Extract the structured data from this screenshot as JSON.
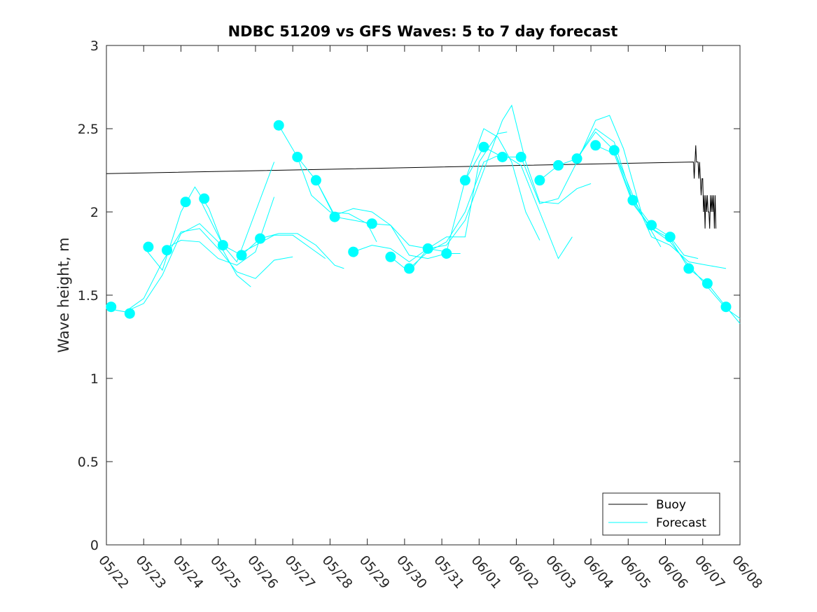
{
  "chart_data": {
    "type": "line",
    "title": "NDBC 51209 vs GFS Waves: 5 to 7 day forecast",
    "xlabel": "",
    "ylabel": "Wave height, m",
    "ylim": [
      0,
      3
    ],
    "yticks": [
      0,
      0.5,
      1,
      1.5,
      2,
      2.5,
      3
    ],
    "ytick_labels": [
      "0",
      "0.5",
      "1",
      "1.5",
      "2",
      "2.5",
      "3"
    ],
    "xlim": [
      "05/22",
      "06/08"
    ],
    "xtick_labels": [
      "05/22",
      "05/23",
      "05/24",
      "05/25",
      "05/26",
      "05/27",
      "05/28",
      "05/29",
      "05/30",
      "05/31",
      "06/01",
      "06/02",
      "06/03",
      "06/04",
      "06/05",
      "06/06",
      "06/07",
      "06/08"
    ],
    "grid": false,
    "legend": {
      "location": "bottom-right",
      "entries": [
        "Buoy",
        "Forecast"
      ]
    },
    "colors": {
      "buoy": "#000000",
      "forecast": "#00ffff"
    },
    "series": [
      {
        "name": "Buoy",
        "style": "line",
        "color": "#000000",
        "points": [
          [
            "05/22 00:00",
            2.23
          ],
          [
            "06/06 18:00",
            2.3
          ],
          [
            "06/06 18:30",
            2.2
          ],
          [
            "06/06 19:00",
            2.3
          ],
          [
            "06/06 19:30",
            2.4
          ],
          [
            "06/06 20:00",
            2.3
          ],
          [
            "06/06 21:00",
            2.3
          ],
          [
            "06/06 21:30",
            2.2
          ],
          [
            "06/06 22:00",
            2.3
          ],
          [
            "06/06 22:30",
            2.2
          ],
          [
            "06/06 23:00",
            2.1
          ],
          [
            "06/06 23:30",
            2.2
          ],
          [
            "06/07 00:00",
            2.2
          ],
          [
            "06/07 00:30",
            2.0
          ],
          [
            "06/07 01:00",
            2.1
          ],
          [
            "06/07 01:30",
            1.9
          ],
          [
            "06/07 02:00",
            2.1
          ],
          [
            "06/07 02:30",
            2.0
          ],
          [
            "06/07 03:00",
            2.1
          ],
          [
            "06/07 03:30",
            2.0
          ],
          [
            "06/07 04:00",
            2.0
          ],
          [
            "06/07 04:30",
            1.9
          ],
          [
            "06/07 05:00",
            2.1
          ],
          [
            "06/07 05:30",
            2.0
          ],
          [
            "06/07 06:00",
            2.1
          ],
          [
            "06/07 06:30",
            2.0
          ],
          [
            "06/07 07:00",
            2.1
          ],
          [
            "06/07 07:30",
            1.9
          ],
          [
            "06/07 08:00",
            2.1
          ],
          [
            "06/07 08:30",
            1.9
          ]
        ]
      },
      {
        "name": "Forecast",
        "style": "markers",
        "color": "#00ffff",
        "points": [
          [
            "05/22 03:00",
            1.43
          ],
          [
            "05/22 15:00",
            1.39
          ],
          [
            "05/23 03:00",
            1.79
          ],
          [
            "05/23 15:00",
            1.77
          ],
          [
            "05/24 03:00",
            2.06
          ],
          [
            "05/24 15:00",
            2.08
          ],
          [
            "05/25 03:00",
            1.8
          ],
          [
            "05/25 15:00",
            1.74
          ],
          [
            "05/26 03:00",
            1.84
          ],
          [
            "05/26 15:00",
            2.52
          ],
          [
            "05/27 03:00",
            2.33
          ],
          [
            "05/27 15:00",
            2.19
          ],
          [
            "05/28 03:00",
            1.97
          ],
          [
            "05/28 15:00",
            1.76
          ],
          [
            "05/29 03:00",
            1.93
          ],
          [
            "05/29 15:00",
            1.73
          ],
          [
            "05/30 03:00",
            1.66
          ],
          [
            "05/30 15:00",
            1.78
          ],
          [
            "05/31 03:00",
            1.75
          ],
          [
            "05/31 15:00",
            2.19
          ],
          [
            "06/01 03:00",
            2.39
          ],
          [
            "06/01 15:00",
            2.33
          ],
          [
            "06/02 03:00",
            2.33
          ],
          [
            "06/02 15:00",
            2.19
          ],
          [
            "06/03 03:00",
            2.28
          ],
          [
            "06/03 15:00",
            2.32
          ],
          [
            "06/04 03:00",
            2.4
          ],
          [
            "06/04 15:00",
            2.37
          ],
          [
            "06/05 03:00",
            2.07
          ],
          [
            "06/05 15:00",
            1.92
          ],
          [
            "06/06 03:00",
            1.85
          ],
          [
            "06/06 15:00",
            1.66
          ],
          [
            "06/07 03:00",
            1.57
          ],
          [
            "06/07 15:00",
            1.43
          ]
        ]
      },
      {
        "name": "Forecast",
        "style": "line",
        "color": "#00ffff",
        "points": [
          [
            "05/22 00:00",
            1.42
          ],
          [
            "05/22 12:00",
            1.4
          ],
          [
            "05/23 00:00",
            1.45
          ],
          [
            "05/23 12:00",
            1.62
          ],
          [
            "05/24 00:00",
            1.87
          ],
          [
            "05/24 12:00",
            1.93
          ],
          [
            "05/25 00:00",
            1.82
          ],
          [
            "05/25 12:00",
            1.62
          ],
          [
            "05/25 21:00",
            1.55
          ]
        ]
      },
      {
        "name": "Forecast",
        "style": "line",
        "color": "#00ffff",
        "points": [
          [
            "05/22 12:00",
            1.4
          ],
          [
            "05/23 00:00",
            1.48
          ],
          [
            "05/23 12:00",
            1.7
          ],
          [
            "05/24 00:00",
            1.88
          ],
          [
            "05/24 12:00",
            1.9
          ],
          [
            "05/25 00:00",
            1.78
          ],
          [
            "05/25 12:00",
            1.64
          ],
          [
            "05/26 00:00",
            1.6
          ],
          [
            "05/26 12:00",
            1.71
          ],
          [
            "05/27 00:00",
            1.73
          ]
        ]
      },
      {
        "name": "Forecast",
        "style": "line",
        "color": "#00ffff",
        "points": [
          [
            "05/23 00:00",
            1.79
          ],
          [
            "05/23 12:00",
            1.65
          ],
          [
            "05/24 00:00",
            2.0
          ],
          [
            "05/24 09:00",
            2.15
          ],
          [
            "05/24 18:00",
            2.02
          ],
          [
            "05/25 03:00",
            1.8
          ],
          [
            "05/25 12:00",
            1.7
          ],
          [
            "05/26 00:00",
            2.0
          ],
          [
            "05/26 12:00",
            2.3
          ]
        ]
      },
      {
        "name": "Forecast",
        "style": "line",
        "color": "#00ffff",
        "points": [
          [
            "05/23 12:00",
            1.77
          ],
          [
            "05/24 00:00",
            1.83
          ],
          [
            "05/24 12:00",
            1.82
          ],
          [
            "05/25 00:00",
            1.72
          ],
          [
            "05/25 12:00",
            1.68
          ],
          [
            "05/26 00:00",
            1.76
          ],
          [
            "05/26 12:00",
            2.09
          ]
        ]
      },
      {
        "name": "Forecast",
        "style": "line",
        "color": "#00ffff",
        "points": [
          [
            "05/24 12:00",
            2.08
          ],
          [
            "05/25 03:00",
            1.8
          ],
          [
            "05/25 15:00",
            1.74
          ],
          [
            "05/26 03:00",
            1.84
          ],
          [
            "05/26 15:00",
            1.87
          ],
          [
            "05/27 03:00",
            1.87
          ],
          [
            "05/27 15:00",
            1.8
          ],
          [
            "05/28 03:00",
            1.68
          ],
          [
            "05/28 09:00",
            1.66
          ]
        ]
      },
      {
        "name": "Forecast",
        "style": "line",
        "color": "#00ffff",
        "points": [
          [
            "05/25 12:00",
            1.74
          ],
          [
            "05/26 00:00",
            1.8
          ],
          [
            "05/26 12:00",
            1.86
          ],
          [
            "05/27 00:00",
            1.86
          ],
          [
            "05/27 12:00",
            1.78
          ],
          [
            "05/27 21:00",
            1.72
          ]
        ]
      },
      {
        "name": "Forecast",
        "style": "line",
        "color": "#00ffff",
        "points": [
          [
            "05/26 15:00",
            2.52
          ],
          [
            "05/27 03:00",
            2.33
          ],
          [
            "05/27 15:00",
            2.19
          ],
          [
            "05/28 03:00",
            1.98
          ],
          [
            "05/28 15:00",
            2.02
          ],
          [
            "05/29 03:00",
            2.0
          ],
          [
            "05/29 15:00",
            1.92
          ],
          [
            "05/30 03:00",
            1.8
          ],
          [
            "05/30 15:00",
            1.78
          ]
        ]
      },
      {
        "name": "Forecast",
        "style": "line",
        "color": "#00ffff",
        "points": [
          [
            "05/27 03:00",
            2.33
          ],
          [
            "05/27 12:00",
            2.1
          ],
          [
            "05/28 00:00",
            2.0
          ],
          [
            "05/28 12:00",
            1.99
          ],
          [
            "05/29 00:00",
            1.93
          ],
          [
            "05/29 06:00",
            1.82
          ]
        ]
      },
      {
        "name": "Forecast",
        "style": "line",
        "color": "#00ffff",
        "points": [
          [
            "05/27 15:00",
            2.19
          ],
          [
            "05/28 03:00",
            1.97
          ],
          [
            "05/28 15:00",
            1.95
          ],
          [
            "05/29 03:00",
            1.93
          ],
          [
            "05/29 15:00",
            1.92
          ],
          [
            "05/30 03:00",
            1.74
          ],
          [
            "05/30 15:00",
            1.72
          ],
          [
            "05/31 03:00",
            1.75
          ],
          [
            "05/31 12:00",
            1.75
          ]
        ]
      },
      {
        "name": "Forecast",
        "style": "line",
        "color": "#00ffff",
        "points": [
          [
            "05/28 15:00",
            1.76
          ],
          [
            "05/29 03:00",
            1.8
          ],
          [
            "05/29 15:00",
            1.78
          ],
          [
            "05/30 03:00",
            1.7
          ],
          [
            "05/30 15:00",
            1.78
          ],
          [
            "05/31 03:00",
            1.85
          ],
          [
            "05/31 15:00",
            1.85
          ],
          [
            "06/01 00:00",
            2.3
          ],
          [
            "06/01 12:00",
            2.47
          ],
          [
            "06/01 18:00",
            2.48
          ]
        ]
      },
      {
        "name": "Forecast",
        "style": "line",
        "color": "#00ffff",
        "points": [
          [
            "05/29 15:00",
            1.73
          ],
          [
            "05/30 03:00",
            1.64
          ],
          [
            "05/30 15:00",
            1.78
          ],
          [
            "05/31 03:00",
            1.76
          ],
          [
            "05/31 15:00",
            2.19
          ],
          [
            "06/01 03:00",
            2.5
          ],
          [
            "06/01 12:00",
            2.45
          ],
          [
            "06/01 21:00",
            2.3
          ],
          [
            "06/02 06:00",
            2.0
          ],
          [
            "06/02 15:00",
            1.83
          ]
        ]
      },
      {
        "name": "Forecast",
        "style": "line",
        "color": "#00ffff",
        "points": [
          [
            "05/30 03:00",
            1.66
          ],
          [
            "05/30 15:00",
            1.76
          ],
          [
            "05/31 03:00",
            1.82
          ],
          [
            "05/31 15:00",
            2.0
          ],
          [
            "06/01 03:00",
            2.3
          ],
          [
            "06/01 15:00",
            2.35
          ],
          [
            "06/02 03:00",
            2.28
          ],
          [
            "06/02 15:00",
            2.0
          ],
          [
            "06/03 03:00",
            1.72
          ],
          [
            "06/03 12:00",
            1.85
          ]
        ]
      },
      {
        "name": "Forecast",
        "style": "line",
        "color": "#00ffff",
        "points": [
          [
            "05/30 15:00",
            1.78
          ],
          [
            "05/31 03:00",
            1.8
          ],
          [
            "05/31 15:00",
            1.95
          ],
          [
            "06/01 03:00",
            2.25
          ],
          [
            "06/01 15:00",
            2.55
          ],
          [
            "06/01 21:00",
            2.64
          ],
          [
            "06/02 06:00",
            2.3
          ],
          [
            "06/02 15:00",
            2.06
          ],
          [
            "06/03 03:00",
            2.05
          ],
          [
            "06/03 15:00",
            2.14
          ],
          [
            "06/04 00:00",
            2.17
          ]
        ]
      },
      {
        "name": "Forecast",
        "style": "line",
        "color": "#00ffff",
        "points": [
          [
            "05/31 15:00",
            2.19
          ],
          [
            "06/01 03:00",
            2.39
          ],
          [
            "06/01 15:00",
            2.33
          ],
          [
            "06/02 03:00",
            2.33
          ],
          [
            "06/02 15:00",
            2.05
          ],
          [
            "06/03 03:00",
            2.08
          ],
          [
            "06/03 15:00",
            2.3
          ],
          [
            "06/04 03:00",
            2.55
          ],
          [
            "06/04 12:00",
            2.58
          ],
          [
            "06/04 21:00",
            2.38
          ],
          [
            "06/05 09:00",
            1.98
          ],
          [
            "06/05 21:00",
            1.79
          ]
        ]
      },
      {
        "name": "Forecast",
        "style": "line",
        "color": "#00ffff",
        "points": [
          [
            "06/02 15:00",
            2.19
          ],
          [
            "06/03 03:00",
            2.28
          ],
          [
            "06/03 15:00",
            2.32
          ],
          [
            "06/04 03:00",
            2.5
          ],
          [
            "06/04 15:00",
            2.42
          ],
          [
            "06/05 03:00",
            2.07
          ],
          [
            "06/05 15:00",
            1.92
          ],
          [
            "06/06 03:00",
            1.85
          ],
          [
            "06/06 12:00",
            1.74
          ],
          [
            "06/06 21:00",
            1.72
          ]
        ]
      },
      {
        "name": "Forecast",
        "style": "line",
        "color": "#00ffff",
        "points": [
          [
            "06/03 15:00",
            2.32
          ],
          [
            "06/04 03:00",
            2.48
          ],
          [
            "06/04 15:00",
            2.37
          ],
          [
            "06/05 03:00",
            2.1
          ],
          [
            "06/05 15:00",
            1.85
          ],
          [
            "06/06 03:00",
            1.8
          ],
          [
            "06/06 15:00",
            1.7
          ],
          [
            "06/07 03:00",
            1.68
          ],
          [
            "06/07 15:00",
            1.66
          ]
        ]
      },
      {
        "name": "Forecast",
        "style": "line",
        "color": "#00ffff",
        "points": [
          [
            "06/04 03:00",
            2.4
          ],
          [
            "06/04 15:00",
            2.35
          ],
          [
            "06/05 03:00",
            2.05
          ],
          [
            "06/05 15:00",
            1.9
          ],
          [
            "06/06 03:00",
            1.84
          ],
          [
            "06/06 15:00",
            1.66
          ],
          [
            "06/07 03:00",
            1.57
          ],
          [
            "06/07 15:00",
            1.43
          ],
          [
            "06/08 00:00",
            1.33
          ]
        ]
      },
      {
        "name": "Forecast",
        "style": "line",
        "color": "#00ffff",
        "points": [
          [
            "06/04 15:00",
            2.37
          ],
          [
            "06/05 03:00",
            2.06
          ],
          [
            "06/05 15:00",
            1.9
          ],
          [
            "06/06 03:00",
            1.82
          ],
          [
            "06/06 15:00",
            1.68
          ],
          [
            "06/07 03:00",
            1.55
          ],
          [
            "06/07 15:00",
            1.42
          ],
          [
            "06/08 00:00",
            1.36
          ]
        ]
      }
    ]
  }
}
